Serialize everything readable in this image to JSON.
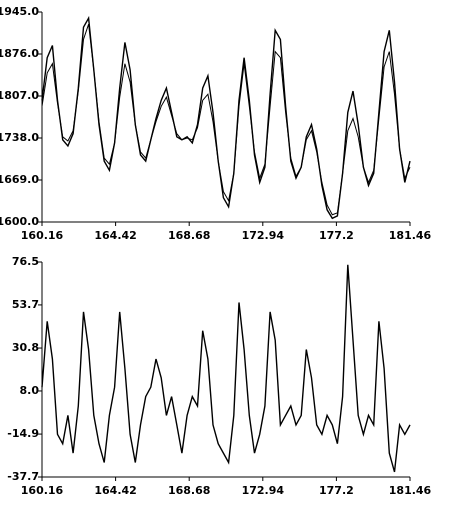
{
  "chart_data": [
    {
      "type": "line",
      "x": [
        160.16,
        160.46,
        160.76,
        161.06,
        161.36,
        161.66,
        161.96,
        162.26,
        162.56,
        162.86,
        163.16,
        163.46,
        163.76,
        164.06,
        164.36,
        164.66,
        164.96,
        165.26,
        165.56,
        165.86,
        166.16,
        166.46,
        166.76,
        167.06,
        167.36,
        167.66,
        167.96,
        168.26,
        168.56,
        168.86,
        169.16,
        169.46,
        169.76,
        170.06,
        170.36,
        170.66,
        170.96,
        171.26,
        171.56,
        171.86,
        172.16,
        172.46,
        172.76,
        173.06,
        173.36,
        173.66,
        173.96,
        174.26,
        174.56,
        174.86,
        175.16,
        175.46,
        175.76,
        176.06,
        176.36,
        176.66,
        176.96,
        177.26,
        177.56,
        177.86,
        178.16,
        178.46,
        178.76,
        179.06,
        179.36,
        179.66,
        179.96,
        180.26,
        180.56,
        180.86,
        181.16,
        181.46
      ],
      "series": [
        {
          "color": "#000000",
          "values": [
            1800,
            1870,
            1890,
            1800,
            1735,
            1725,
            1745,
            1820,
            1920,
            1935,
            1850,
            1760,
            1700,
            1685,
            1730,
            1820,
            1895,
            1850,
            1760,
            1710,
            1700,
            1735,
            1770,
            1800,
            1820,
            1780,
            1740,
            1735,
            1740,
            1730,
            1760,
            1820,
            1840,
            1780,
            1700,
            1640,
            1625,
            1680,
            1800,
            1870,
            1800,
            1710,
            1665,
            1690,
            1810,
            1915,
            1900,
            1790,
            1700,
            1672,
            1690,
            1740,
            1760,
            1720,
            1660,
            1620,
            1606,
            1610,
            1680,
            1780,
            1815,
            1760,
            1690,
            1660,
            1680,
            1780,
            1880,
            1915,
            1830,
            1720,
            1665,
            1700
          ]
        },
        {
          "color": "#000000",
          "values": [
            1790,
            1845,
            1860,
            1795,
            1740,
            1733,
            1750,
            1815,
            1900,
            1925,
            1850,
            1765,
            1705,
            1695,
            1730,
            1805,
            1860,
            1830,
            1760,
            1715,
            1705,
            1735,
            1765,
            1790,
            1805,
            1775,
            1745,
            1735,
            1738,
            1735,
            1755,
            1800,
            1810,
            1765,
            1700,
            1650,
            1635,
            1680,
            1790,
            1860,
            1790,
            1715,
            1672,
            1695,
            1790,
            1880,
            1870,
            1780,
            1705,
            1675,
            1690,
            1735,
            1750,
            1715,
            1665,
            1628,
            1612,
            1615,
            1680,
            1750,
            1770,
            1740,
            1690,
            1665,
            1685,
            1770,
            1855,
            1880,
            1810,
            1720,
            1672,
            1690
          ]
        }
      ],
      "xlim": [
        160.16,
        181.46
      ],
      "ylim": [
        1600,
        1945
      ],
      "xticks": [
        160.16,
        164.42,
        168.68,
        172.94,
        177.2,
        181.46
      ],
      "yticks": [
        {
          "value": 1600,
          "label": "1600.0"
        },
        {
          "value": 1669,
          "label": "1669.0"
        },
        {
          "value": 1738,
          "label": "1738.0"
        },
        {
          "value": 1807,
          "label": "1807.0"
        },
        {
          "value": 1876,
          "label": "1876.0"
        },
        {
          "value": 1945,
          "label": "1945.0"
        }
      ]
    },
    {
      "type": "line",
      "x": [
        160.16,
        160.46,
        160.76,
        161.06,
        161.36,
        161.66,
        161.96,
        162.26,
        162.56,
        162.86,
        163.16,
        163.46,
        163.76,
        164.06,
        164.36,
        164.66,
        164.96,
        165.26,
        165.56,
        165.86,
        166.16,
        166.46,
        166.76,
        167.06,
        167.36,
        167.66,
        167.96,
        168.26,
        168.56,
        168.86,
        169.16,
        169.46,
        169.76,
        170.06,
        170.36,
        170.66,
        170.96,
        171.26,
        171.56,
        171.86,
        172.16,
        172.46,
        172.76,
        173.06,
        173.36,
        173.66,
        173.96,
        174.26,
        174.56,
        174.86,
        175.16,
        175.46,
        175.76,
        176.06,
        176.36,
        176.66,
        176.96,
        177.26,
        177.56,
        177.86,
        178.16,
        178.46,
        178.76,
        179.06,
        179.36,
        179.66,
        179.96,
        180.26,
        180.56,
        180.86,
        181.16,
        181.46
      ],
      "series": [
        {
          "color": "#000000",
          "values": [
            10,
            45,
            25,
            -15,
            -20,
            -5,
            -25,
            0,
            50,
            30,
            -5,
            -20,
            -30,
            -5,
            10,
            50,
            20,
            -15,
            -30,
            -10,
            5,
            10,
            25,
            15,
            -5,
            5,
            -10,
            -25,
            -5,
            5,
            0,
            40,
            25,
            -10,
            -20,
            -25,
            -30,
            -5,
            55,
            30,
            -5,
            -25,
            -15,
            0,
            50,
            35,
            -10,
            -5,
            0,
            -10,
            -5,
            30,
            15,
            -10,
            -15,
            -5,
            -10,
            -20,
            5,
            75,
            35,
            -5,
            -15,
            -5,
            -10,
            45,
            20,
            -25,
            -35,
            -10,
            -15,
            -10
          ]
        }
      ],
      "xlim": [
        160.16,
        181.46
      ],
      "ylim": [
        -37.7,
        76.5
      ],
      "xticks": [
        160.16,
        164.42,
        168.68,
        172.94,
        177.2,
        181.46
      ],
      "yticks": [
        -37.7,
        -14.9,
        {
          "value": 8,
          "label": "8.0"
        },
        30.8,
        53.7,
        76.5
      ]
    }
  ]
}
